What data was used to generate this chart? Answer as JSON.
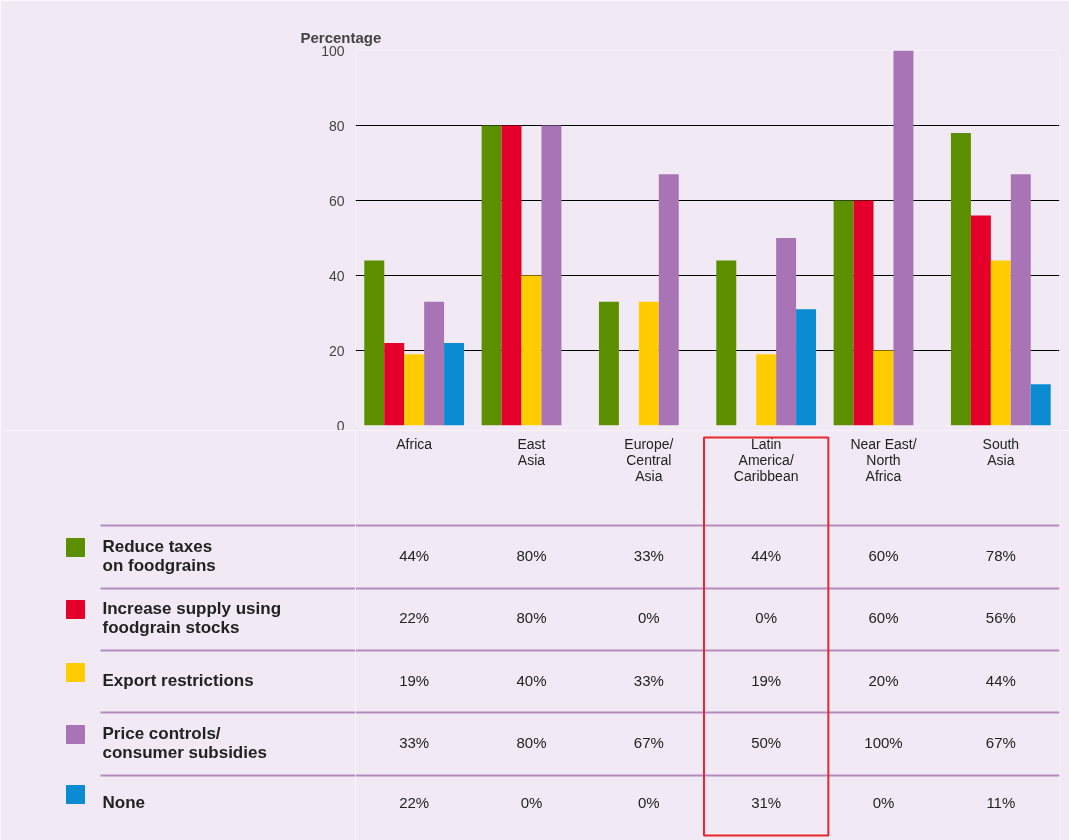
{
  "chart_data": {
    "type": "bar",
    "ylabel": "Percentage",
    "categories": [
      "Africa",
      "East\nAsia",
      "Europe/\nCentral\nAsia",
      "Latin\nAmerica/\nCaribbean",
      "Near East/\nNorth\nAfrica",
      "South\nAsia"
    ],
    "series": [
      {
        "name": "Reduce taxes\non foodgrains",
        "color": "#5b8f00",
        "values": [
          44,
          80,
          33,
          44,
          60,
          78
        ],
        "value_labels": [
          "44%",
          "80%",
          "33%",
          "44%",
          "60%",
          "78%"
        ]
      },
      {
        "name": "Increase supply using\nfoodgrain stocks",
        "color": "#e4002b",
        "values": [
          22,
          80,
          0,
          0,
          60,
          56
        ],
        "value_labels": [
          "22%",
          "80%",
          "0%",
          "0%",
          "60%",
          "56%"
        ]
      },
      {
        "name": "Export restrictions",
        "color": "#ffcc00",
        "values": [
          19,
          40,
          33,
          19,
          20,
          44
        ],
        "value_labels": [
          "19%",
          "40%",
          "33%",
          "19%",
          "20%",
          "44%"
        ]
      },
      {
        "name": "Price controls/\nconsumer subsidies",
        "color": "#a874b5",
        "values": [
          33,
          80,
          67,
          50,
          100,
          67
        ],
        "value_labels": [
          "33%",
          "80%",
          "67%",
          "50%",
          "100%",
          "67%"
        ]
      },
      {
        "name": "None",
        "color": "#0a8bd2",
        "values": [
          22,
          0,
          0,
          31,
          0,
          11
        ],
        "value_labels": [
          "22%",
          "0%",
          "0%",
          "31%",
          "0%",
          "11%"
        ]
      }
    ],
    "legend": "bottom left",
    "ylim": [
      0,
      100
    ],
    "yticks": [
      0,
      20,
      40,
      60,
      80,
      100
    ],
    "grid": "y"
  }
}
